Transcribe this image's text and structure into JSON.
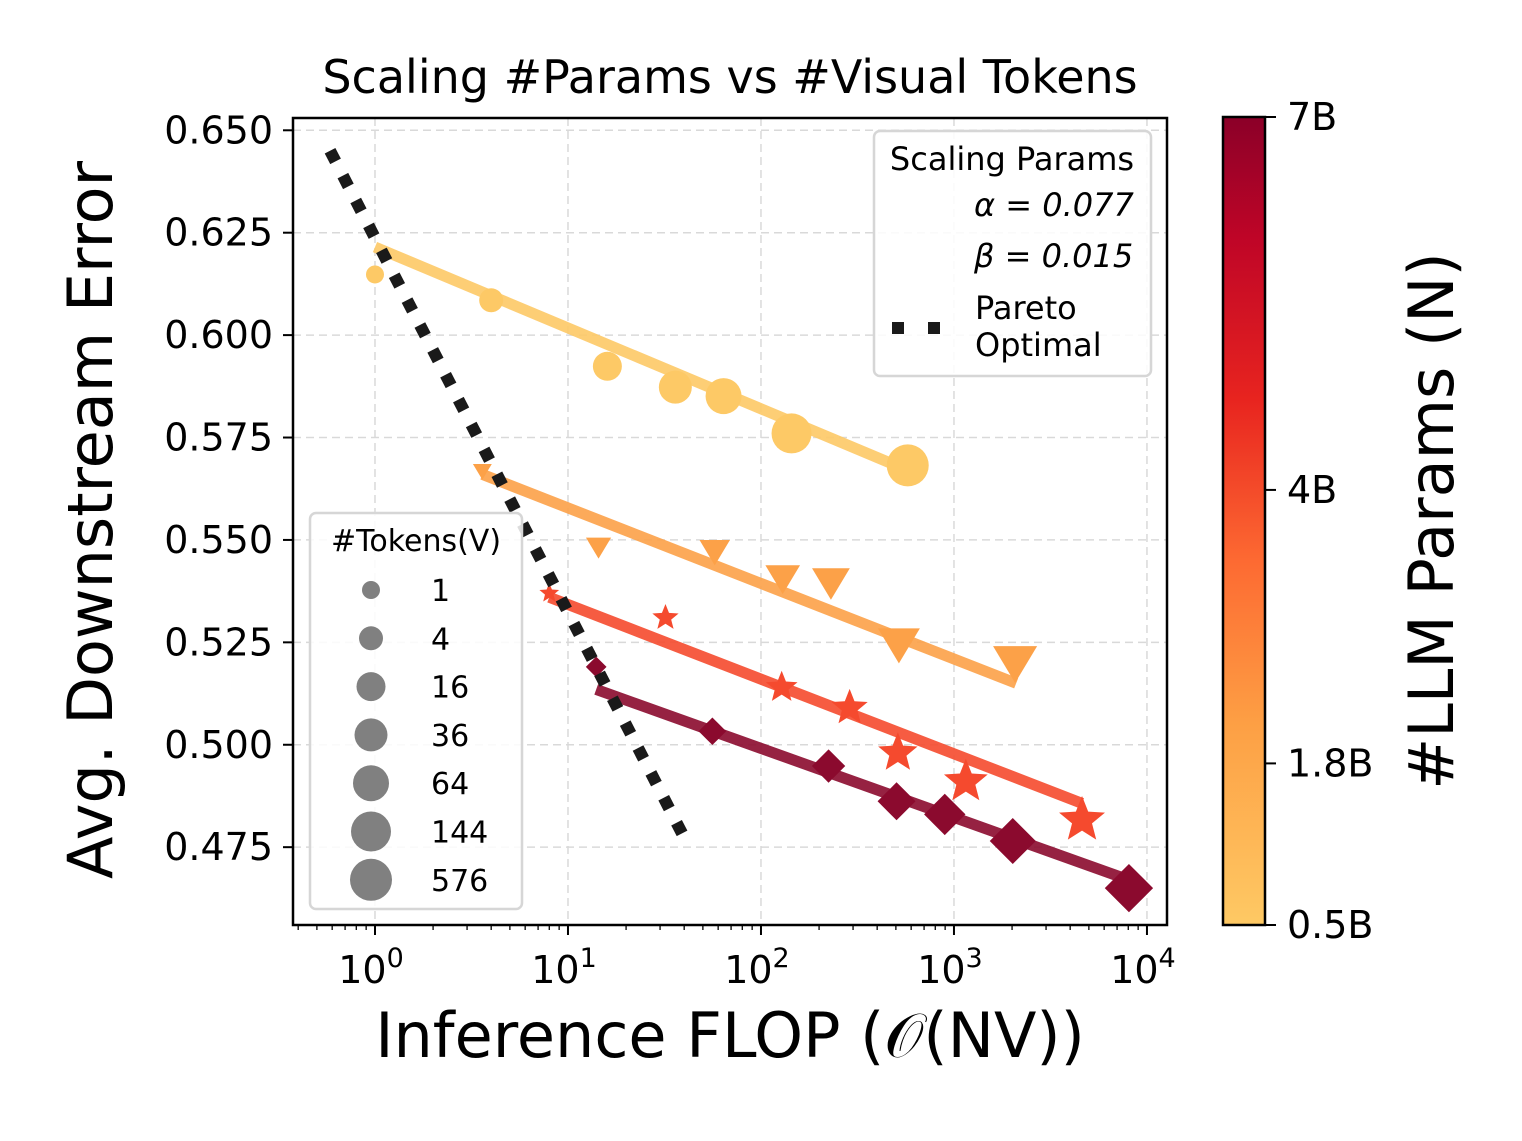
{
  "chart_data": {
    "type": "scatter",
    "title": "Scaling #Params vs #Visual Tokens",
    "xlabel": "Inference FLOP (𝒪(NV))",
    "ylabel": "Avg. Downstream Error",
    "xscale": "log",
    "xlim": [
      0.376,
      12700
    ],
    "ylim": [
      0.456,
      0.653
    ],
    "grid": true,
    "x_ticks": [
      {
        "value": 1,
        "base": "10",
        "exp": "0"
      },
      {
        "value": 10,
        "base": "10",
        "exp": "1"
      },
      {
        "value": 100,
        "base": "10",
        "exp": "2"
      },
      {
        "value": 1000,
        "base": "10",
        "exp": "3"
      },
      {
        "value": 10000,
        "base": "10",
        "exp": "4"
      }
    ],
    "y_ticks": [
      {
        "value": 0.65,
        "label": "0.650"
      },
      {
        "value": 0.625,
        "label": "0.625"
      },
      {
        "value": 0.6,
        "label": "0.600"
      },
      {
        "value": 0.575,
        "label": "0.575"
      },
      {
        "value": 0.55,
        "label": "0.550"
      },
      {
        "value": 0.525,
        "label": "0.525"
      },
      {
        "value": 0.5,
        "label": "0.500"
      },
      {
        "value": 0.475,
        "label": "0.475"
      }
    ],
    "tokens": [
      1,
      4,
      16,
      36,
      64,
      144,
      576
    ],
    "series": [
      {
        "params": "0.5B",
        "marker": "circle",
        "color": "#fdc966",
        "x": [
          1,
          4,
          16,
          36,
          64,
          144,
          576
        ],
        "y": [
          0.6148,
          0.6085,
          0.5924,
          0.5873,
          0.5851,
          0.576,
          0.5682
        ],
        "fit": {
          "x": [
            1,
            576
          ],
          "y": [
            0.6215,
            0.567
          ]
        }
      },
      {
        "params": "1.8B",
        "marker": "triangle-down",
        "color": "#fca148",
        "x": [
          3.6,
          14.4,
          57.6,
          129.6,
          230.4,
          518.4,
          2073.6
        ],
        "y": [
          0.567,
          0.5485,
          0.5475,
          0.541,
          0.54,
          0.525,
          0.5205
        ],
        "fit": {
          "x": [
            3.6,
            2100
          ],
          "y": [
            0.566,
            0.515
          ]
        }
      },
      {
        "params": "4B",
        "marker": "star",
        "color": "#f54a2e",
        "x": [
          8,
          32,
          128,
          288,
          512,
          1152,
          4608
        ],
        "y": [
          0.537,
          0.531,
          0.514,
          0.509,
          0.498,
          0.491,
          0.4816
        ],
        "fit": {
          "x": [
            8,
            4608
          ],
          "y": [
            0.536,
            0.4857
          ]
        }
      },
      {
        "params": "7B",
        "marker": "diamond",
        "color": "#8b0a2e",
        "x": [
          14,
          56,
          224,
          504,
          896,
          2016,
          8064
        ],
        "y": [
          0.519,
          0.5033,
          0.4948,
          0.4862,
          0.483,
          0.4765,
          0.465
        ],
        "fit": {
          "x": [
            14,
            8064
          ],
          "y": [
            0.5135,
            0.467
          ]
        }
      }
    ],
    "pareto": {
      "x": [
        0.585,
        41.4
      ],
      "y": [
        0.645,
        0.476
      ],
      "color": "#1a1a1a"
    },
    "legend_params": {
      "title": "Scaling Params",
      "alpha": "α = 0.077",
      "beta": "β = 0.015",
      "pareto_label_1": "Pareto",
      "pareto_label_2": "Optimal",
      "placement": "top-right"
    },
    "legend_tokens": {
      "title": "#Tokens(V)",
      "labels": [
        "1",
        "4",
        "16",
        "36",
        "64",
        "144",
        "576"
      ],
      "placement": "lower-left"
    },
    "colorbar": {
      "label": "#LLM Params (N)",
      "range": [
        0.5,
        7
      ],
      "ticks": [
        {
          "value": 0.5,
          "label": "0.5B"
        },
        {
          "value": 1.8,
          "label": "1.8B"
        },
        {
          "value": 4,
          "label": "4B"
        },
        {
          "value": 7,
          "label": "7B"
        }
      ],
      "colors": [
        "#fed36f",
        "#feb24c",
        "#fd8d3c",
        "#fc4e2a",
        "#e31a1c",
        "#bd0026",
        "#800026"
      ]
    }
  }
}
